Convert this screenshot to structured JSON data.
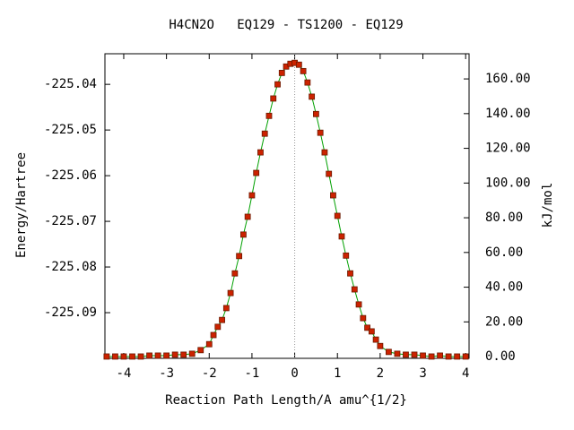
{
  "chart_data": {
    "type": "line",
    "title": "H4CN2O   EQ129 - TS1200 - EQ129",
    "xlabel": "Reaction Path Length/A amu^{1/2}",
    "ylabel": "Energy/Hartree",
    "y2label": "kJ/mol",
    "x": [
      -4.4,
      -4.2,
      -4.0,
      -3.8,
      -3.6,
      -3.4,
      -3.2,
      -3.0,
      -2.8,
      -2.6,
      -2.4,
      -2.2,
      -2.0,
      -1.9,
      -1.8,
      -1.7,
      -1.6,
      -1.5,
      -1.4,
      -1.3,
      -1.2,
      -1.1,
      -1.0,
      -0.9,
      -0.8,
      -0.7,
      -0.6,
      -0.5,
      -0.4,
      -0.3,
      -0.2,
      -0.1,
      0,
      0.1,
      0.2,
      0.3,
      0.4,
      0.5,
      0.6,
      0.7,
      0.8,
      0.9,
      1.0,
      1.1,
      1.2,
      1.3,
      1.4,
      1.5,
      1.6,
      1.7,
      1.8,
      1.9,
      2.0,
      2.2,
      2.4,
      2.6,
      2.8,
      3.0,
      3.2,
      3.4,
      3.6,
      3.8,
      4.0
    ],
    "series": [
      {
        "name": "Energy",
        "line_color": "#00a000",
        "color": "#cc2200",
        "values": [
          -225.0996,
          -225.0996,
          -225.0996,
          -225.0996,
          -225.0996,
          -225.0994,
          -225.0994,
          -225.0994,
          -225.0992,
          -225.0992,
          -225.099,
          -225.0982,
          -225.0969,
          -225.0949,
          -225.0931,
          -225.0916,
          -225.089,
          -225.0857,
          -225.0814,
          -225.0776,
          -225.0729,
          -225.069,
          -225.0643,
          -225.0594,
          -225.0549,
          -225.0508,
          -225.0469,
          -225.0431,
          -225.04,
          -225.0375,
          -225.0361,
          -225.0355,
          -225.0353,
          -225.0357,
          -225.0371,
          -225.0396,
          -225.0427,
          -225.0465,
          -225.0506,
          -225.0549,
          -225.0596,
          -225.0643,
          -225.0688,
          -225.0733,
          -225.0775,
          -225.0814,
          -225.0849,
          -225.0882,
          -225.0912,
          -225.0933,
          -225.0941,
          -225.0959,
          -225.0973,
          -225.0986,
          -225.099,
          -225.0992,
          -225.0992,
          -225.0994,
          -225.0996,
          -225.0994,
          -225.0996,
          -225.0996,
          -225.0996
        ]
      }
    ],
    "xlim": [
      -4.44,
      4.08
    ],
    "xticks": [
      -4,
      -3,
      -2,
      -1,
      0,
      1,
      2,
      3,
      4
    ],
    "ylim": [
      -225.1,
      -225.0333
    ],
    "yticks": [
      -225.04,
      -225.05,
      -225.06,
      -225.07,
      -225.08,
      -225.09
    ],
    "y2lim": [
      -1,
      174.5
    ],
    "y2ticks": [
      {
        "value": 0,
        "label": "0.00"
      },
      {
        "value": 20,
        "label": "20.00"
      },
      {
        "value": 40,
        "label": "40.00"
      },
      {
        "value": 60,
        "label": "60.00"
      },
      {
        "value": 80,
        "label": "80.00"
      },
      {
        "value": 100,
        "label": "100.00"
      },
      {
        "value": 120,
        "label": "120.00"
      },
      {
        "value": 140,
        "label": "140.00"
      },
      {
        "value": 160,
        "label": "160.00"
      }
    ],
    "vline_x": 0
  }
}
